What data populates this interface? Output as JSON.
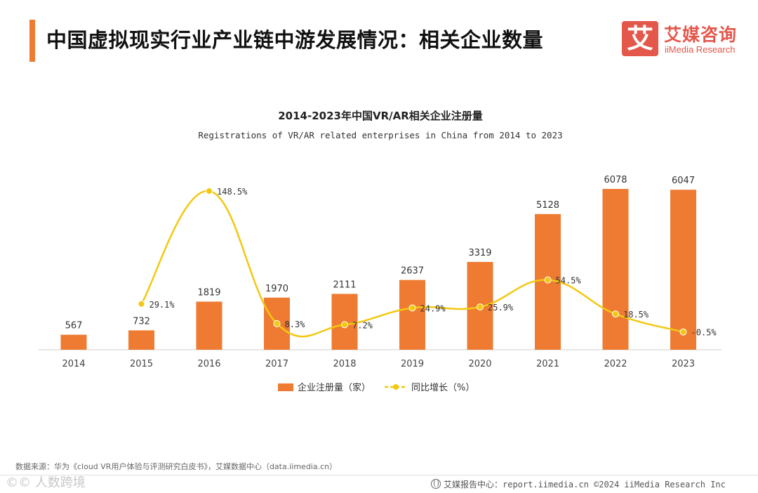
{
  "header": {
    "title": "中国虚拟现实行业产业链中游发展情况：相关企业数量",
    "logo_mark": "艾",
    "logo_cn": "艾媒咨询",
    "logo_en": "iiMedia Research"
  },
  "colors": {
    "accent": "#ee7b31",
    "bar": "#ee7b31",
    "line": "#f2c811",
    "brand": "#e4574b"
  },
  "chart_data": {
    "type": "bar",
    "title": "2014-2023年中国VR/AR相关企业注册量",
    "subtitle": "Registrations of VR/AR related enterprises in China from 2014 to 2023",
    "categories": [
      "2014",
      "2015",
      "2016",
      "2017",
      "2018",
      "2019",
      "2020",
      "2021",
      "2022",
      "2023"
    ],
    "series": [
      {
        "name": "企业注册量（家）",
        "type": "bar",
        "values": [
          567,
          732,
          1819,
          1970,
          2111,
          2637,
          3319,
          5128,
          6078,
          6047
        ]
      },
      {
        "name": "同比增长（%）",
        "type": "line",
        "values": [
          null,
          29.1,
          148.5,
          8.3,
          7.2,
          24.9,
          25.9,
          54.5,
          18.5,
          -0.5
        ],
        "labels": [
          "",
          "29.1%",
          "148.5%",
          "8.3%",
          "7.2%",
          "24.9%",
          "25.9%",
          "54.5%",
          "18.5%",
          "-0.5%"
        ]
      }
    ],
    "legend_position": "bottom",
    "grid": false
  },
  "footer": {
    "source": "数据来源：华为《cloud VR用户体验与评测研究白皮书》，艾媒数据中心（data.iimedia.cn）",
    "watermark": "©© 人数跨境",
    "report": "艾媒报告中心：report.iimedia.cn  ©2024  iiMedia Research Inc"
  }
}
